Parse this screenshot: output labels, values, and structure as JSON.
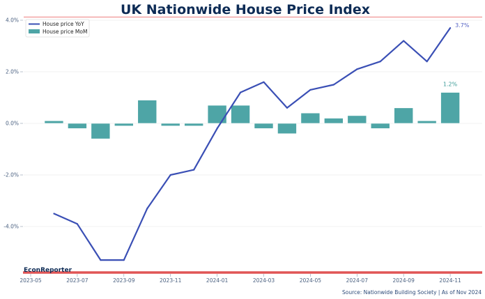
{
  "chart_data": {
    "type": "bar+line",
    "title": "UK Nationwide House Price Index",
    "xlabel": "",
    "ylabel": "",
    "ylim": [
      -5.6,
      4.1
    ],
    "xlim": [
      "2023-05",
      "2024-12"
    ],
    "grid": true,
    "legend_position": "top-left",
    "x_tick_labels": [
      "2023-05",
      "2023-07",
      "2023-09",
      "2023-11",
      "2024-01",
      "2024-03",
      "2024-05",
      "2024-07",
      "2024-09",
      "2024-11"
    ],
    "y_ticks": [
      4.0,
      2.0,
      0.0,
      -2.0,
      -4.0
    ],
    "y_tick_labels": [
      "4.0%",
      "2.0%",
      "0.0%",
      "-2.0%",
      "-4.0%"
    ],
    "x": [
      "2023-06",
      "2023-07",
      "2023-08",
      "2023-09",
      "2023-10",
      "2023-11",
      "2023-12",
      "2024-01",
      "2024-02",
      "2024-03",
      "2024-04",
      "2024-05",
      "2024-06",
      "2024-07",
      "2024-08",
      "2024-09",
      "2024-10",
      "2024-11"
    ],
    "series": [
      {
        "name": "House price YoY",
        "type": "line",
        "color": "#3a4fb5",
        "values": [
          -3.5,
          -3.9,
          -5.3,
          -5.3,
          -3.3,
          -2.0,
          -1.8,
          -0.2,
          1.2,
          1.6,
          0.6,
          1.3,
          1.5,
          2.1,
          2.4,
          3.2,
          2.4,
          3.7
        ]
      },
      {
        "name": "House price MoM",
        "type": "bar",
        "color": "#4ea5a6",
        "values": [
          0.1,
          -0.2,
          -0.6,
          -0.1,
          0.9,
          -0.1,
          -0.1,
          0.7,
          0.7,
          -0.2,
          -0.4,
          0.4,
          0.2,
          0.3,
          -0.2,
          0.6,
          0.1,
          1.2
        ]
      }
    ],
    "annotations": [
      {
        "series": "House price YoY",
        "x": "2024-11",
        "text": "3.7%"
      },
      {
        "series": "House price MoM",
        "x": "2024-11",
        "text": "1.2%"
      }
    ]
  },
  "branding": "EconReporter",
  "source": "Source: Nationwide Building Society | As of Nov 2024",
  "colors": {
    "title": "#0d2b55",
    "accent_red": "#e05555",
    "line": "#3a4fb5",
    "bar": "#4ea5a6"
  }
}
